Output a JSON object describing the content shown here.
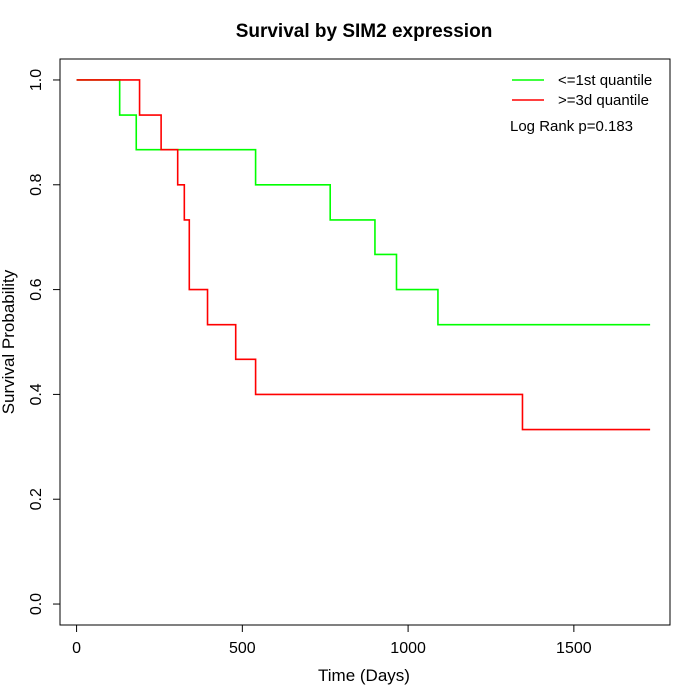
{
  "chart_data": {
    "type": "line",
    "step": true,
    "title": "Survival by SIM2 expression",
    "xlabel": "Time (Days)",
    "ylabel": "Survival Probability",
    "xlim": [
      -50,
      1790
    ],
    "ylim": [
      -0.04,
      1.04
    ],
    "x_ticks": [
      0,
      500,
      1000,
      1500
    ],
    "y_ticks": [
      0.0,
      0.2,
      0.4,
      0.6,
      0.8,
      1.0
    ],
    "x_tick_labels": [
      "0",
      "500",
      "1000",
      "1500"
    ],
    "y_tick_labels": [
      "0.0",
      "0.2",
      "0.4",
      "0.6",
      "0.8",
      "1.0"
    ],
    "grid": false,
    "legend_position": "top-right",
    "annotation": "Log Rank p=0.183",
    "series": [
      {
        "name": "<=1st quantile",
        "color": "#00ff00",
        "x": [
          0,
          130,
          180,
          540,
          765,
          900,
          965,
          1090,
          1730
        ],
        "y": [
          1.0,
          0.933,
          0.867,
          0.8,
          0.733,
          0.667,
          0.6,
          0.533,
          0.533
        ]
      },
      {
        "name": ">=3d quantile",
        "color": "#ff0000",
        "x": [
          0,
          190,
          255,
          305,
          325,
          340,
          395,
          480,
          540,
          1345,
          1730
        ],
        "y": [
          1.0,
          0.933,
          0.867,
          0.8,
          0.733,
          0.6,
          0.533,
          0.467,
          0.4,
          0.333,
          0.333
        ]
      }
    ]
  }
}
